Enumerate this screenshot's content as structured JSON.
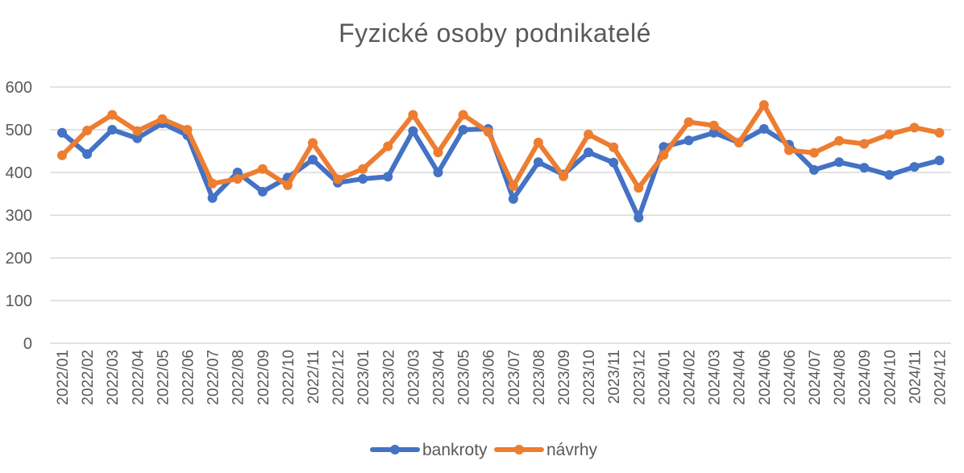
{
  "chart_data": {
    "type": "line",
    "title": "Fyzické osoby podnikatelé",
    "xlabel": "",
    "ylabel": "",
    "ylim": [
      0,
      600
    ],
    "yticks": [
      0,
      100,
      200,
      300,
      400,
      500,
      600
    ],
    "grid": true,
    "legend_position": "bottom",
    "categories": [
      "2022/01",
      "2022/02",
      "2022/03",
      "2022/04",
      "2022/05",
      "2022/06",
      "2022/07",
      "2022/08",
      "2022/09",
      "2022/10",
      "2022/11",
      "2022/12",
      "2023/01",
      "2023/02",
      "2023/03",
      "2023/04",
      "2023/05",
      "2023/06",
      "2023/07",
      "2023/08",
      "2023/09",
      "2023/10",
      "2023/11",
      "2023/12",
      "2024/01",
      "2024/02",
      "2024/03",
      "2024/04",
      "2024/06",
      "2024/06",
      "2024/07",
      "2024/08",
      "2024/09",
      "2024/10",
      "2024/11",
      "2024/12"
    ],
    "series": [
      {
        "name": "bankroty",
        "color": "#4472c4",
        "values": [
          493,
          443,
          500,
          480,
          515,
          487,
          340,
          400,
          355,
          388,
          430,
          376,
          385,
          390,
          497,
          400,
          500,
          502,
          338,
          424,
          395,
          447,
          423,
          294,
          460,
          475,
          493,
          470,
          502,
          465,
          406,
          424,
          411,
          394,
          413,
          428
        ]
      },
      {
        "name": "návrhy",
        "color": "#ed7d31",
        "values": [
          440,
          498,
          535,
          497,
          525,
          500,
          374,
          385,
          408,
          370,
          469,
          384,
          408,
          461,
          535,
          447,
          535,
          495,
          368,
          470,
          391,
          489,
          459,
          364,
          441,
          518,
          510,
          470,
          558,
          452,
          446,
          474,
          467,
          489,
          505,
          493
        ]
      }
    ]
  }
}
